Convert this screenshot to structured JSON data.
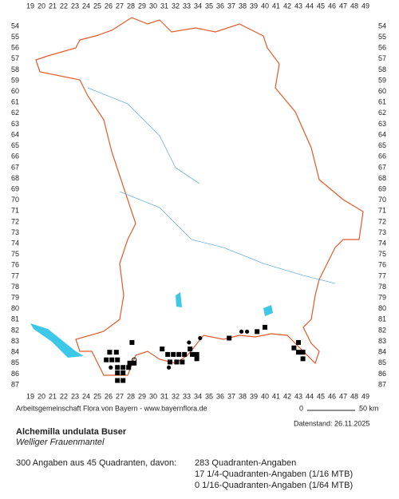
{
  "grid": {
    "columns": [
      19,
      20,
      21,
      22,
      23,
      24,
      25,
      26,
      27,
      28,
      29,
      30,
      31,
      32,
      33,
      34,
      35,
      36,
      37,
      38,
      39,
      40,
      41,
      42,
      43,
      44,
      45,
      46,
      47,
      48,
      49
    ],
    "rows": [
      54,
      55,
      56,
      57,
      58,
      59,
      60,
      61,
      62,
      63,
      64,
      65,
      66,
      67,
      68,
      69,
      70,
      71,
      72,
      73,
      74,
      75,
      76,
      77,
      78,
      79,
      80,
      81,
      82,
      83,
      84,
      85,
      86,
      87
    ]
  },
  "points": [
    {
      "x": 28.1,
      "y": 83.1,
      "shape": "square"
    },
    {
      "x": 26.1,
      "y": 84,
      "shape": "square"
    },
    {
      "x": 26.7,
      "y": 84,
      "shape": "square"
    },
    {
      "x": 25.8,
      "y": 84.7,
      "shape": "square"
    },
    {
      "x": 26.3,
      "y": 84.7,
      "shape": "square"
    },
    {
      "x": 26.8,
      "y": 84.7,
      "shape": "square"
    },
    {
      "x": 26.2,
      "y": 85.4,
      "shape": "dot"
    },
    {
      "x": 26.8,
      "y": 85.4,
      "shape": "square"
    },
    {
      "x": 27.3,
      "y": 85.4,
      "shape": "square"
    },
    {
      "x": 27.8,
      "y": 85.4,
      "shape": "square"
    },
    {
      "x": 28.3,
      "y": 84.7,
      "shape": "circle"
    },
    {
      "x": 26.8,
      "y": 85.9,
      "shape": "square"
    },
    {
      "x": 27.3,
      "y": 85.9,
      "shape": "square"
    },
    {
      "x": 27.9,
      "y": 85,
      "shape": "square"
    },
    {
      "x": 28.3,
      "y": 85,
      "shape": "square"
    },
    {
      "x": 26.8,
      "y": 86.6,
      "shape": "square"
    },
    {
      "x": 27.3,
      "y": 86.6,
      "shape": "square"
    },
    {
      "x": 30.8,
      "y": 83.7,
      "shape": "square"
    },
    {
      "x": 31.3,
      "y": 84.2,
      "shape": "square"
    },
    {
      "x": 31.8,
      "y": 84.2,
      "shape": "square"
    },
    {
      "x": 32.3,
      "y": 84.2,
      "shape": "square"
    },
    {
      "x": 32.8,
      "y": 84.2,
      "shape": "square"
    },
    {
      "x": 33.5,
      "y": 84.2,
      "shape": "square"
    },
    {
      "x": 33.9,
      "y": 84.2,
      "shape": "square"
    },
    {
      "x": 31.5,
      "y": 84.9,
      "shape": "square"
    },
    {
      "x": 32.1,
      "y": 84.9,
      "shape": "square"
    },
    {
      "x": 32.6,
      "y": 84.9,
      "shape": "square"
    },
    {
      "x": 33.9,
      "y": 84.6,
      "shape": "square"
    },
    {
      "x": 31.4,
      "y": 85.4,
      "shape": "dot"
    },
    {
      "x": 33.3,
      "y": 83.7,
      "shape": "square"
    },
    {
      "x": 33.2,
      "y": 83.1,
      "shape": "dot"
    },
    {
      "x": 34.2,
      "y": 82.7,
      "shape": "dot"
    },
    {
      "x": 36.8,
      "y": 82.7,
      "shape": "square"
    },
    {
      "x": 37.9,
      "y": 82.1,
      "shape": "dot"
    },
    {
      "x": 38.4,
      "y": 82.1,
      "shape": "dot"
    },
    {
      "x": 39.3,
      "y": 82.1,
      "shape": "square"
    },
    {
      "x": 40,
      "y": 81.7,
      "shape": "square"
    },
    {
      "x": 42.6,
      "y": 83.6,
      "shape": "square"
    },
    {
      "x": 43,
      "y": 83.1,
      "shape": "square"
    },
    {
      "x": 43,
      "y": 84,
      "shape": "square"
    },
    {
      "x": 43.4,
      "y": 84,
      "shape": "square"
    },
    {
      "x": 43.4,
      "y": 84.6,
      "shape": "square"
    }
  ],
  "credit": "Arbeitsgemeinschaft Flora von Bayern - www.bayernflora.de",
  "scale": {
    "start": "0",
    "end": "50 km"
  },
  "date": "Datenstand: 26.11.2025",
  "title": "Alchemilla undulata Buser",
  "subtitle": "Welliger Frauenmantel",
  "summary": "300 Angaben aus 45 Quadranten, davon:",
  "counts": [
    "283 Quadranten-Angaben",
    "17 1/4-Quadranten-Angaben (1/16 MTB)",
    "0 1/16-Quadranten-Angaben (1/64 MTB)"
  ]
}
